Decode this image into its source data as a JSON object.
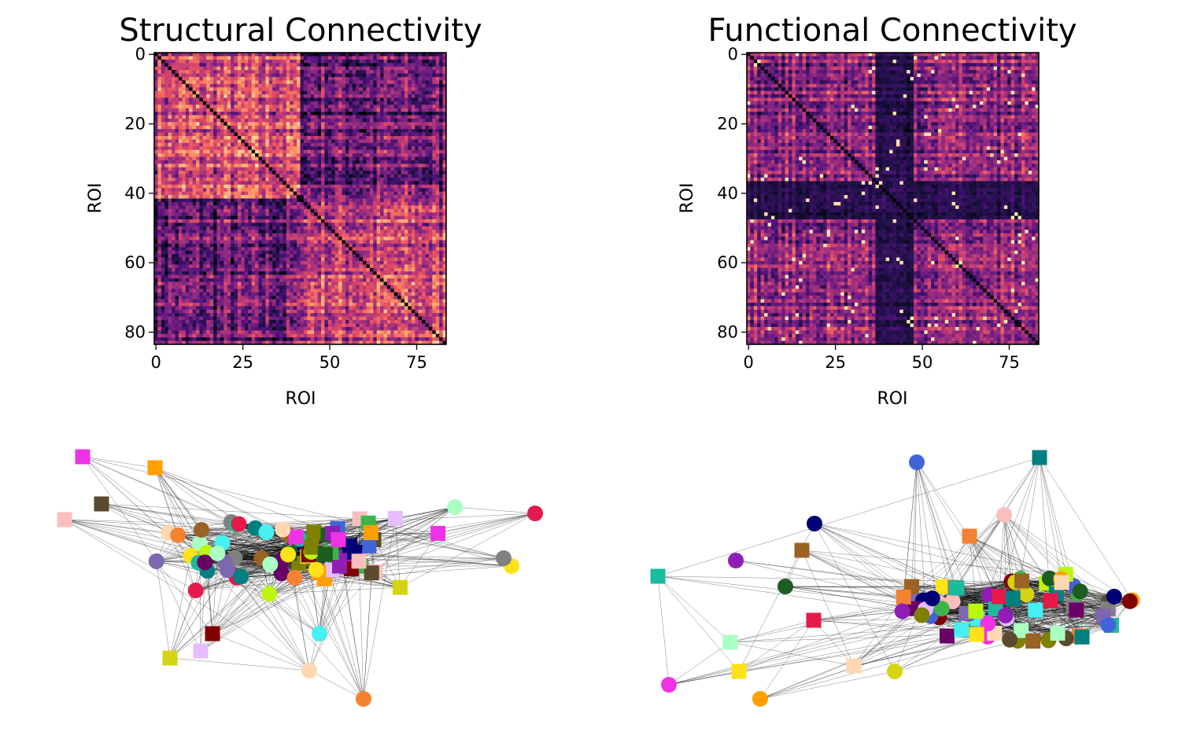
{
  "chart_data": [
    {
      "type": "heatmap",
      "title": "Structural Connectivity",
      "xlabel": "ROI",
      "ylabel": "ROI",
      "n_rois": 84,
      "colormap": "magma",
      "xticks": [
        0,
        25,
        50,
        75
      ],
      "yticks": [
        0,
        20,
        40,
        60,
        80
      ],
      "xlim": [
        0,
        83
      ],
      "ylim": [
        83,
        0
      ],
      "diagonal": 0
    },
    {
      "type": "heatmap",
      "title": "Functional Connectivity",
      "xlabel": "ROI",
      "ylabel": "ROI",
      "n_rois": 84,
      "colormap": "magma",
      "xticks": [
        0,
        25,
        50,
        75
      ],
      "yticks": [
        0,
        20,
        40,
        60,
        80
      ],
      "xlim": [
        0,
        83
      ],
      "ylim": [
        83,
        0
      ],
      "diagonal": 0
    },
    {
      "type": "network",
      "graph": "structural",
      "n_nodes": 84,
      "node_shapes": [
        "circle",
        "square"
      ],
      "edge_color": "#000000"
    },
    {
      "type": "network",
      "graph": "functional",
      "n_nodes": 84,
      "node_shapes": [
        "circle",
        "square"
      ],
      "edge_color": "#000000"
    }
  ],
  "palette": [
    "#e6194b",
    "#3cb44b",
    "#ffe119",
    "#4363d8",
    "#f58231",
    "#911eb4",
    "#46f0f0",
    "#f032e6",
    "#bcf60c",
    "#fabebe",
    "#008080",
    "#e6beff",
    "#9a6324",
    "#800000",
    "#aaffc3",
    "#808000",
    "#ffd8b1",
    "#000075",
    "#808080",
    "#1b5e20",
    "#6a0066",
    "#ff9f00",
    "#7b68ae",
    "#d4d414",
    "#1abc9c",
    "#5a4a2e"
  ]
}
